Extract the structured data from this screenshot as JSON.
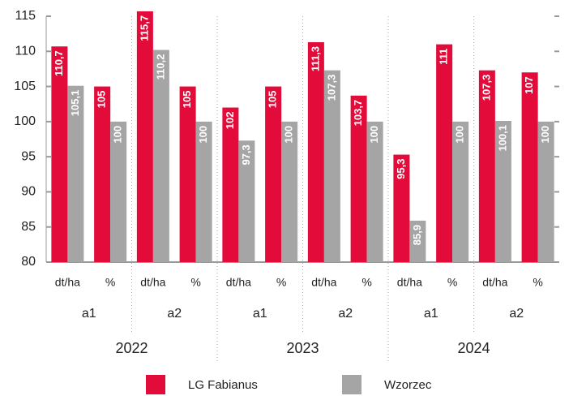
{
  "chart_data": {
    "type": "bar",
    "groups": [
      "2022",
      "2023",
      "2024"
    ],
    "subgroups": [
      "a1",
      "a2",
      "a1",
      "a2",
      "a1",
      "a2"
    ],
    "categories": [
      "dt/ha",
      "%",
      "dt/ha",
      "%",
      "dt/ha",
      "%",
      "dt/ha",
      "%",
      "dt/ha",
      "%",
      "dt/ha",
      "%"
    ],
    "series": [
      {
        "name": "LG Fabianus",
        "color": "#e30b3a",
        "values": [
          110.7,
          105,
          115.7,
          105,
          102,
          105,
          111.3,
          103.7,
          95.3,
          111,
          107.3,
          107
        ],
        "value_labels": [
          "110,7",
          "105",
          "115,7",
          "105",
          "102",
          "105",
          "111,3",
          "103,7",
          "95,3",
          "111",
          "107,3",
          "107"
        ]
      },
      {
        "name": "Wzorzec",
        "color": "#a5a5a5",
        "values": [
          105.1,
          100,
          110.2,
          100,
          97.3,
          100,
          107.3,
          100,
          85.9,
          100,
          100.1,
          100
        ],
        "value_labels": [
          "105,1",
          "100",
          "110,2",
          "100",
          "97,3",
          "100",
          "107,3",
          "100",
          "85,9",
          "100",
          "100,1",
          "100"
        ]
      }
    ],
    "ylim": [
      80,
      115
    ],
    "yticks": [
      80,
      85,
      90,
      95,
      100,
      105,
      110,
      115
    ],
    "grid": false
  }
}
